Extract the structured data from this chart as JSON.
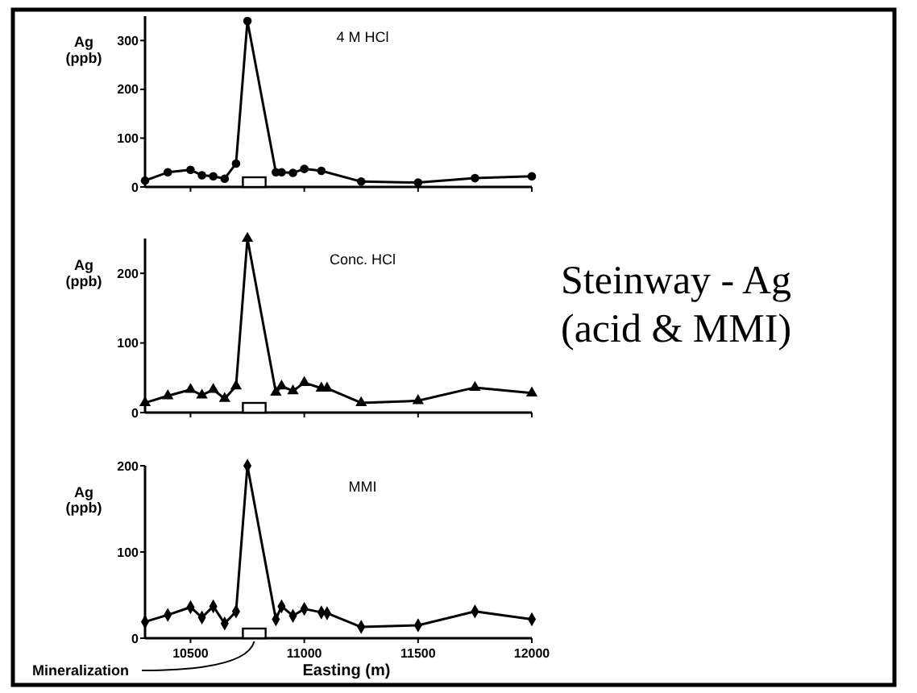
{
  "chart_data": [
    {
      "type": "line",
      "title": "4 M HCl",
      "ylabel": "Ag\n(ppb)",
      "annotations": [
        "Steinway - Ag\n(acid & MMI)"
      ],
      "x": [
        10300,
        10400,
        10500,
        10550,
        10600,
        10650,
        10700,
        10750,
        10875,
        10900,
        10950,
        11000,
        11075,
        11250,
        11500,
        11750,
        12000
      ],
      "series": [
        {
          "color": "#000000",
          "values": [
            13,
            30,
            35,
            24,
            22,
            17,
            48,
            340,
            30,
            30,
            29,
            37,
            33,
            11,
            9,
            18,
            22
          ]
        }
      ],
      "marker": "circle",
      "xlim": [
        10300,
        12000
      ],
      "xticks": [
        {
          "value": 10500,
          "label": null
        },
        {
          "value": 11000,
          "label": null
        },
        {
          "value": 11500,
          "label": null
        },
        {
          "value": 12000,
          "label": null
        }
      ],
      "ylim": [
        0,
        350
      ],
      "yticks": [
        0,
        100,
        200,
        300
      ],
      "tick_labels": "y",
      "grid": false,
      "bands": [
        {
          "axis": "x",
          "from": 10730,
          "to": 10830
        }
      ]
    },
    {
      "type": "line",
      "title": "Conc. HCl",
      "ylabel": "Ag\n(ppb)",
      "x": [
        10300,
        10400,
        10500,
        10550,
        10600,
        10650,
        10700,
        10750,
        10875,
        10900,
        10950,
        11000,
        11075,
        11100,
        11250,
        11500,
        11750,
        12000
      ],
      "series": [
        {
          "color": "#000000",
          "values": [
            14,
            24,
            33,
            25,
            33,
            20,
            38,
            250,
            29,
            38,
            31,
            43,
            35,
            35,
            14,
            17,
            36,
            28
          ]
        }
      ],
      "marker": "triangle",
      "xlim": [
        10300,
        12000
      ],
      "xticks": [
        {
          "value": 10500,
          "label": null
        },
        {
          "value": 11000,
          "label": null
        },
        {
          "value": 11500,
          "label": null
        },
        {
          "value": 12000,
          "label": null
        }
      ],
      "ylim": [
        0,
        250
      ],
      "yticks": [
        0,
        100,
        200
      ],
      "tick_labels": "y",
      "grid": false,
      "bands": [
        {
          "axis": "x",
          "from": 10730,
          "to": 10830
        }
      ]
    },
    {
      "type": "line",
      "title": "MMI",
      "ylabel": "Ag\n(ppb)",
      "xlabel": "Easting (m)",
      "x": [
        10300,
        10400,
        10500,
        10550,
        10600,
        10650,
        10700,
        10750,
        10875,
        10900,
        10950,
        11000,
        11075,
        11100,
        11250,
        11500,
        11750,
        12000
      ],
      "series": [
        {
          "color": "#000000",
          "values": [
            19,
            27,
            36,
            24,
            37,
            17,
            31,
            200,
            22,
            37,
            26,
            34,
            30,
            29,
            13,
            15,
            31,
            22
          ]
        }
      ],
      "marker": "diamond",
      "xlim": [
        10300,
        12000
      ],
      "xticks": [
        10500,
        11000,
        11500,
        12000
      ],
      "ylim": [
        0,
        200
      ],
      "yticks": [
        0,
        100,
        200
      ],
      "grid": false,
      "bands": [
        {
          "axis": "x",
          "from": 10730,
          "to": 10830,
          "label": "Mineralization"
        }
      ]
    }
  ]
}
